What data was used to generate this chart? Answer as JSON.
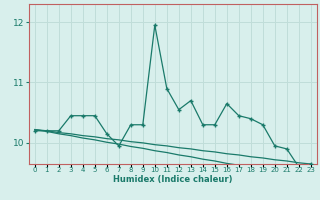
{
  "xlabel": "Humidex (Indice chaleur)",
  "x": [
    0,
    1,
    2,
    3,
    4,
    5,
    6,
    7,
    8,
    9,
    10,
    11,
    12,
    13,
    14,
    15,
    16,
    17,
    18,
    19,
    20,
    21,
    22,
    23
  ],
  "y_main": [
    10.2,
    10.2,
    10.2,
    10.45,
    10.45,
    10.45,
    10.15,
    9.95,
    10.3,
    10.3,
    11.95,
    10.9,
    10.55,
    10.7,
    10.3,
    10.3,
    10.65,
    10.45,
    10.4,
    10.3,
    9.95,
    9.9,
    9.6,
    9.65
  ],
  "y_trend1": [
    10.22,
    10.19,
    10.15,
    10.12,
    10.08,
    10.05,
    10.01,
    9.98,
    9.94,
    9.91,
    9.87,
    9.84,
    9.8,
    9.77,
    9.73,
    9.7,
    9.66,
    9.63,
    9.59,
    9.56,
    9.52,
    9.49,
    9.45,
    9.42
  ],
  "y_trend2": [
    10.22,
    10.2,
    10.17,
    10.15,
    10.12,
    10.1,
    10.07,
    10.05,
    10.02,
    10.0,
    9.97,
    9.95,
    9.92,
    9.9,
    9.87,
    9.85,
    9.82,
    9.8,
    9.77,
    9.75,
    9.72,
    9.7,
    9.67,
    9.65
  ],
  "ylim": [
    9.65,
    12.3
  ],
  "yticks": [
    10,
    11,
    12
  ],
  "bg_color": "#d8efec",
  "grid_color": "#c0ddd9",
  "line_color": "#1a7a6a",
  "spine_color": "#c06060"
}
